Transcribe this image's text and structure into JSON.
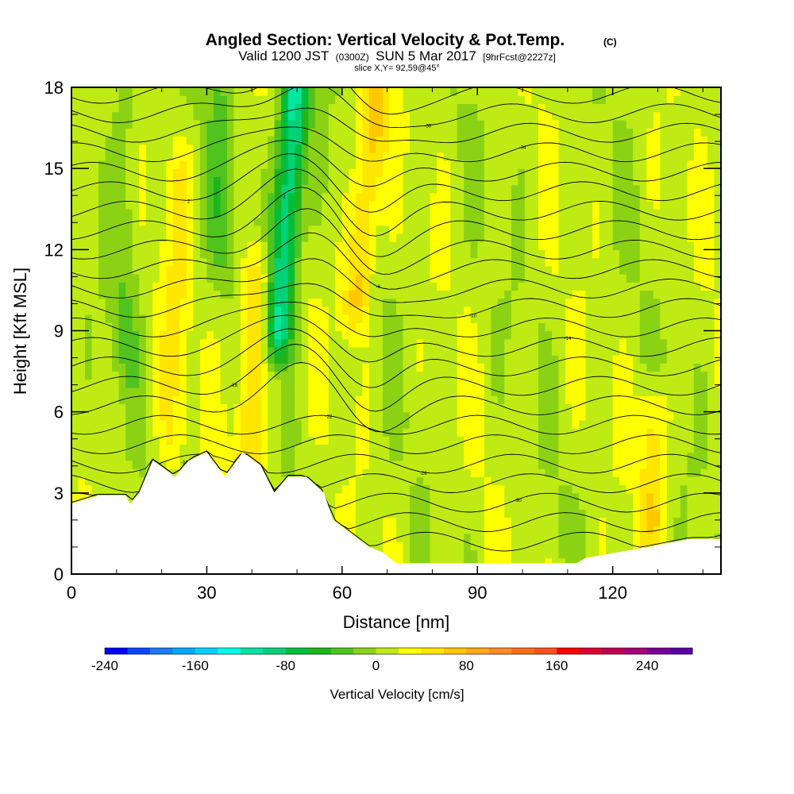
{
  "chart_data": {
    "type": "heatmap",
    "title": "Angled Section: Vertical Velocity & Pot.Temp.",
    "title_suffix": "(C)",
    "subtitle_parts": [
      "Valid 1200 JST",
      "(0300Z)",
      "SUN 5 Mar 2017",
      "[9hrFcst@2227z]"
    ],
    "subtitle2": "slice X,Y= 92,59@45°",
    "xlabel": "Distance [nm]",
    "ylabel": "Height [Kft MSL]",
    "xlim": [
      0,
      144
    ],
    "ylim": [
      0,
      18
    ],
    "xticks": [
      0,
      30,
      60,
      90,
      120
    ],
    "yticks": [
      0,
      3,
      6,
      9,
      12,
      15,
      18
    ],
    "grid": false,
    "fill_variable": "Vertical Velocity [cm/s]",
    "contour_variable": "Potential Temperature (C)",
    "colorbar": {
      "label": "Vertical Velocity [cm/s]",
      "tick_labels": [
        "-240",
        "-160",
        "-80",
        "0",
        "80",
        "160",
        "240"
      ],
      "tick_values": [
        -240,
        -160,
        -80,
        0,
        80,
        160,
        240
      ],
      "range": [
        -240,
        280
      ],
      "colors": [
        "#0000ff",
        "#0a46ff",
        "#1e78ff",
        "#00aaff",
        "#00d2ff",
        "#00ffe6",
        "#00e6a0",
        "#00d278",
        "#00be3c",
        "#1eb41e",
        "#50c31e",
        "#8cd214",
        "#beeb14",
        "#ffff00",
        "#ffe600",
        "#ffc800",
        "#ffaa14",
        "#ff8c1e",
        "#ff6e1e",
        "#ff501e",
        "#ff0000",
        "#dc0032",
        "#be0050",
        "#a00078",
        "#780096",
        "#5a00a0"
      ]
    },
    "velocity_features": [
      {
        "kind": "downdraft",
        "x": 46,
        "y_range": [
          9,
          18
        ],
        "peak_cms": -120,
        "tilt": 0.4
      },
      {
        "kind": "updraft",
        "x": 63,
        "y_range": [
          10,
          18
        ],
        "peak_cms": 60,
        "tilt": 0.6
      },
      {
        "kind": "updraft",
        "x": 39,
        "y_range": [
          4,
          11
        ],
        "peak_cms": 55,
        "tilt": 0.3
      },
      {
        "kind": "updraft",
        "x": 22,
        "y_range": [
          5,
          15
        ],
        "peak_cms": 30,
        "tilt": 0.2
      },
      {
        "kind": "downdraft",
        "x": 12,
        "y_range": [
          8,
          18
        ],
        "peak_cms": -25,
        "tilt": 0.0
      },
      {
        "kind": "downdraft",
        "x": 33,
        "y_range": [
          12,
          18
        ],
        "peak_cms": -30,
        "tilt": 0.0
      },
      {
        "kind": "updraft",
        "x": 129,
        "y_range": [
          2,
          6
        ],
        "peak_cms": 45,
        "tilt": 0.0
      }
    ],
    "terrain_profile": [
      [
        0,
        2.6
      ],
      [
        6,
        2.9
      ],
      [
        12,
        2.9
      ],
      [
        13,
        2.6
      ],
      [
        15,
        3.0
      ],
      [
        18,
        4.2
      ],
      [
        23,
        3.6
      ],
      [
        26,
        4.2
      ],
      [
        30,
        4.5
      ],
      [
        34,
        3.6
      ],
      [
        38,
        4.5
      ],
      [
        42,
        4.0
      ],
      [
        45,
        3.0
      ],
      [
        48,
        3.6
      ],
      [
        52,
        3.6
      ],
      [
        56,
        3.0
      ],
      [
        58,
        2.0
      ],
      [
        62,
        1.5
      ],
      [
        66,
        1.0
      ],
      [
        69,
        0.8
      ],
      [
        72,
        0.4
      ],
      [
        112,
        0.4
      ],
      [
        114,
        0.6
      ],
      [
        128,
        1.0
      ],
      [
        137,
        1.3
      ],
      [
        144,
        1.3
      ]
    ],
    "isentrope_labels": [
      "-34",
      "-30",
      "-26",
      "-22",
      "-18",
      "-14",
      "-10",
      "-6",
      "-2",
      "2"
    ]
  }
}
